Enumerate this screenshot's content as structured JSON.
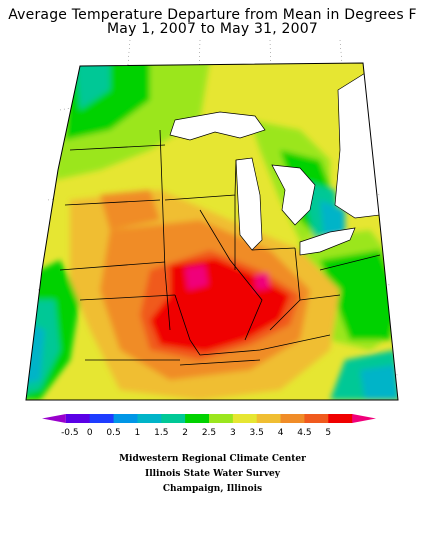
{
  "title": {
    "line1": "Average Temperature Departure from Mean in Degrees F",
    "line2": "May 1, 2007 to May 31, 2007"
  },
  "legend": {
    "labels": [
      "-0.5",
      "0",
      "0.5",
      "1",
      "1.5",
      "2",
      "2.5",
      "3",
      "3.5",
      "4",
      "4.5",
      "5"
    ],
    "colors": [
      "#9900cc",
      "#5a00e6",
      "#1e3cff",
      "#0096e6",
      "#00b4c8",
      "#00c896",
      "#00d200",
      "#9be61e",
      "#e6e632",
      "#f0be32",
      "#f08c28",
      "#f05a1e",
      "#f00000",
      "#f0007a"
    ]
  },
  "regions": [
    {
      "name": "upper-michigan-blue",
      "color": "#00b4c8"
    },
    {
      "name": "mid-missouri-red",
      "color": "#f00000"
    },
    {
      "name": "nebraska-orange",
      "color": "#f08c28"
    }
  ],
  "credits": {
    "line1": "Midwestern Regional Climate Center",
    "line2": "Illinois State Water Survey",
    "line3": "Champaign, Illinois"
  }
}
